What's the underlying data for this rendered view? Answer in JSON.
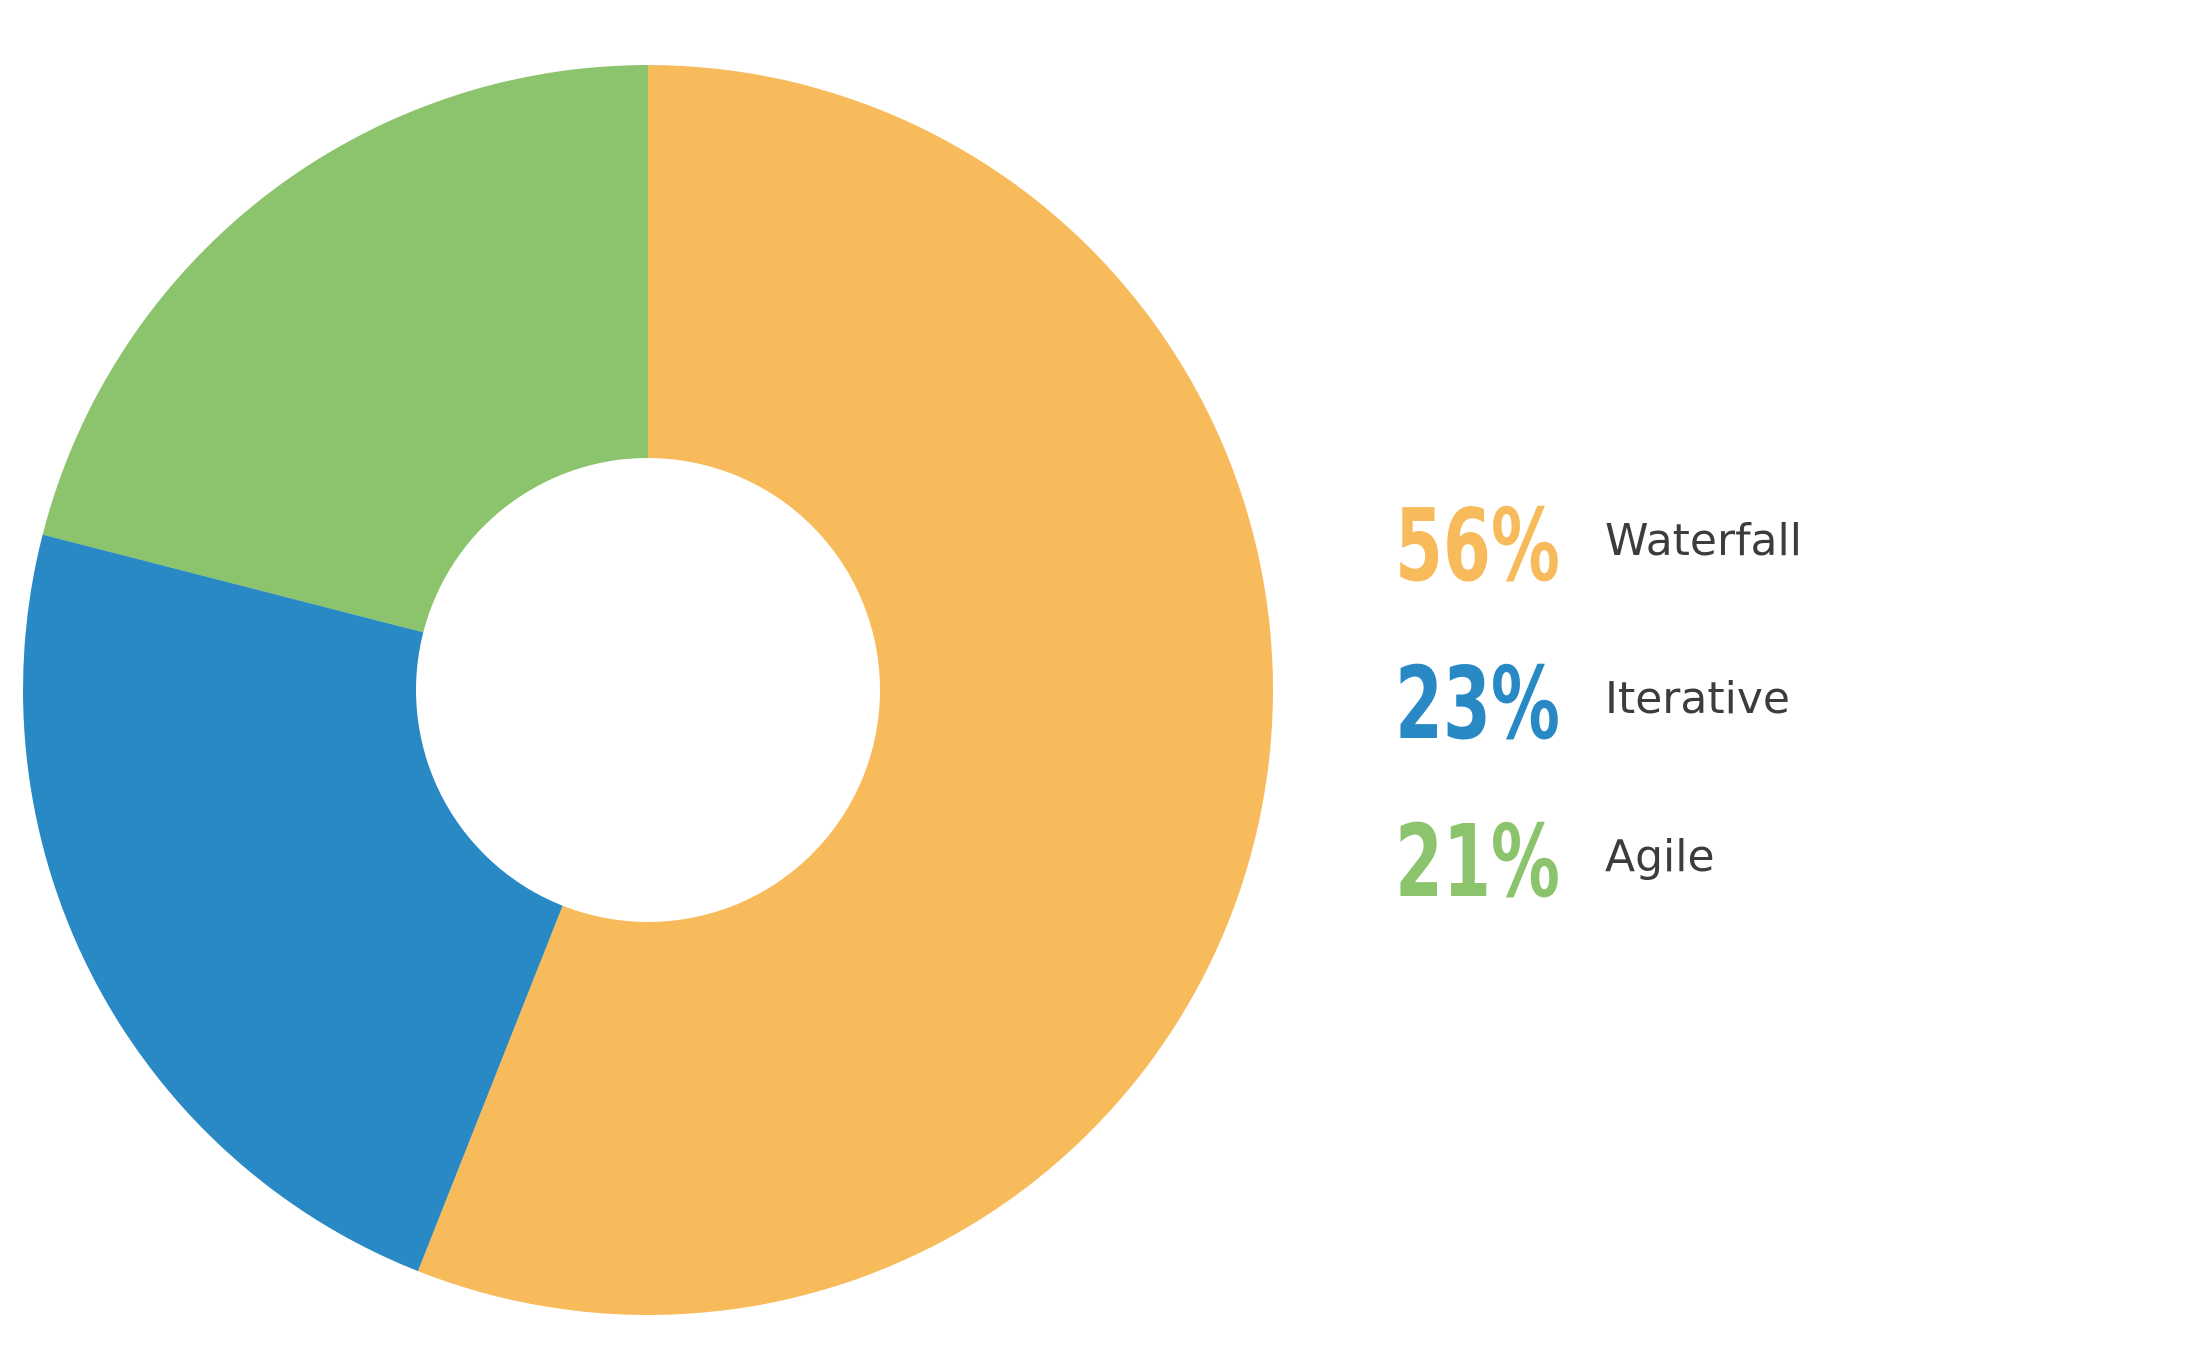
{
  "chart_data": {
    "type": "pie",
    "donut": true,
    "title": "",
    "categories": [
      "Waterfall",
      "Iterative",
      "Agile"
    ],
    "values": [
      56,
      23,
      21
    ],
    "value_labels": [
      "56%",
      "23%",
      "21%"
    ],
    "colors": [
      "#F8BB5B",
      "#2989C5",
      "#8BC46C"
    ],
    "start_angle_deg": 0,
    "direction": "clockwise",
    "legend": {
      "placement": "right",
      "entries": [
        {
          "value": "56%",
          "label": "Waterfall",
          "color": "#F8BB5B"
        },
        {
          "value": "23%",
          "label": "Iterative",
          "color": "#2989C5"
        },
        {
          "value": "21%",
          "label": "Agile",
          "color": "#8BC46C"
        }
      ]
    }
  }
}
